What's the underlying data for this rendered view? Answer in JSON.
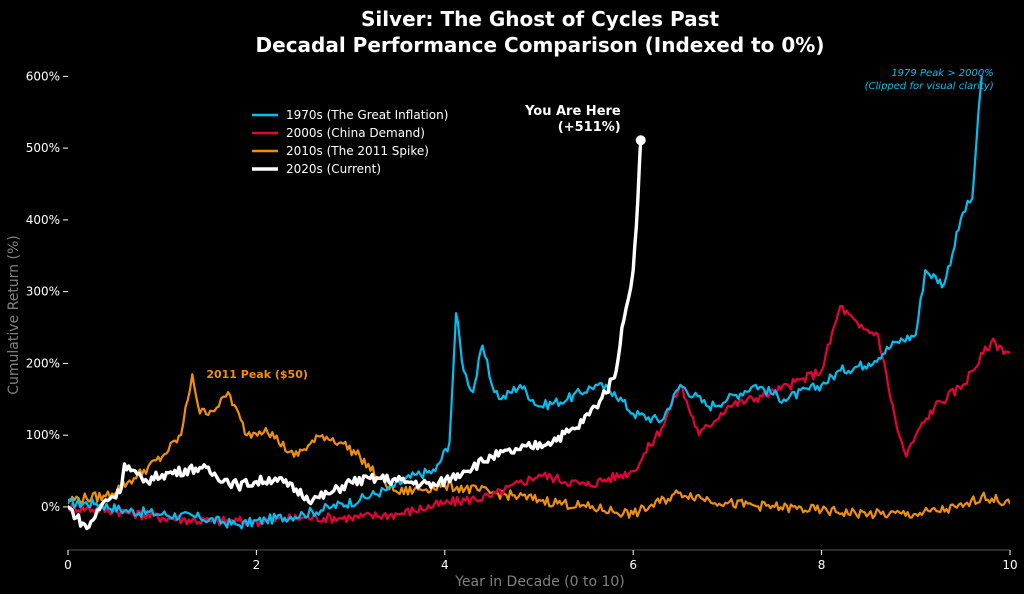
{
  "chart_data": {
    "type": "line",
    "title": "Silver: The Ghost of Cycles Past",
    "subtitle": "Decadal Performance Comparison (Indexed to 0%)",
    "xlabel": "Year in Decade (0 to 10)",
    "ylabel": "Cumulative Return (%)",
    "xlim": [
      0,
      10
    ],
    "ylim": [
      -60,
      620
    ],
    "x_ticks": [
      0,
      2,
      4,
      6,
      8,
      10
    ],
    "y_ticks": [
      0,
      100,
      200,
      300,
      400,
      500,
      600
    ],
    "y_tick_labels": [
      "0%",
      "100%",
      "200%",
      "300%",
      "400%",
      "500%",
      "600%"
    ],
    "grid": false,
    "legend_position": "upper-left",
    "series": [
      {
        "name": "1970s (The Great Inflation)",
        "color": "#00c0f0",
        "x": [
          0,
          0.3,
          0.6,
          1.0,
          1.4,
          1.8,
          2.1,
          2.5,
          2.8,
          3.1,
          3.4,
          3.7,
          3.9,
          4.05,
          4.12,
          4.2,
          4.3,
          4.4,
          4.5,
          4.6,
          4.8,
          5.0,
          5.3,
          5.6,
          5.8,
          6.0,
          6.3,
          6.5,
          6.8,
          7.0,
          7.3,
          7.6,
          8.0,
          8.2,
          8.5,
          8.8,
          9.0,
          9.1,
          9.3,
          9.5,
          9.6,
          9.65,
          9.7
        ],
        "y": [
          5,
          5,
          -5,
          -10,
          -15,
          -25,
          -18,
          -10,
          0,
          10,
          25,
          45,
          50,
          90,
          270,
          190,
          160,
          225,
          170,
          150,
          170,
          140,
          150,
          170,
          160,
          130,
          120,
          170,
          140,
          150,
          170,
          150,
          170,
          190,
          200,
          230,
          240,
          330,
          310,
          410,
          430,
          520,
          600
        ]
      },
      {
        "name": "2000s (China Demand)",
        "color": "#e8003c",
        "x": [
          0,
          0.5,
          1.0,
          1.5,
          2.0,
          2.5,
          3.0,
          3.5,
          4.0,
          4.5,
          5.0,
          5.5,
          6.0,
          6.3,
          6.5,
          6.7,
          7.0,
          7.5,
          8.0,
          8.2,
          8.4,
          8.6,
          8.8,
          8.9,
          9.0,
          9.2,
          9.5,
          9.8,
          10.0
        ],
        "y": [
          0,
          -5,
          -15,
          -20,
          -20,
          -15,
          -15,
          -10,
          5,
          15,
          45,
          30,
          50,
          110,
          170,
          100,
          140,
          160,
          190,
          280,
          250,
          240,
          110,
          70,
          100,
          140,
          170,
          230,
          215
        ]
      },
      {
        "name": "2010s (The 2011 Spike)",
        "color": "#f0900a",
        "x": [
          0,
          0.4,
          0.7,
          1.0,
          1.2,
          1.32,
          1.4,
          1.6,
          1.7,
          1.9,
          2.1,
          2.4,
          2.7,
          2.9,
          3.1,
          3.3,
          3.5,
          4.0,
          4.5,
          5.0,
          5.5,
          6.0,
          6.5,
          7.0,
          7.5,
          8.0,
          8.5,
          9.0,
          9.5,
          9.7,
          10.0
        ],
        "y": [
          10,
          15,
          40,
          70,
          100,
          185,
          130,
          140,
          160,
          100,
          110,
          70,
          100,
          90,
          70,
          40,
          20,
          30,
          20,
          10,
          0,
          -10,
          20,
          5,
          0,
          -5,
          -10,
          -10,
          0,
          15,
          5
        ]
      },
      {
        "name": "2020s (Current)",
        "color": "#ffffff",
        "x": [
          0,
          0.2,
          0.4,
          0.55,
          0.6,
          0.8,
          1.0,
          1.4,
          1.8,
          2.2,
          2.6,
          2.8,
          3.0,
          3.3,
          3.6,
          3.9,
          4.2,
          4.5,
          4.8,
          5.1,
          5.4,
          5.6,
          5.8,
          5.9,
          6.0,
          6.05,
          6.08
        ],
        "y": [
          0,
          -30,
          10,
          20,
          60,
          35,
          45,
          55,
          30,
          40,
          10,
          20,
          35,
          40,
          35,
          30,
          50,
          70,
          80,
          90,
          110,
          140,
          180,
          260,
          330,
          430,
          511
        ]
      }
    ],
    "annotations": [
      {
        "text": "You Are Here\n(+511%)",
        "x": 6.08,
        "y": 511,
        "color": "#ffffff"
      },
      {
        "text": "2011 Peak ($50)",
        "x": 1.32,
        "y": 185,
        "color": "#f0900a"
      },
      {
        "text": "1979 Peak > 2000%\n(Clipped for visual clarity)",
        "x": 9.7,
        "y": 600,
        "color": "#00c0f0"
      }
    ]
  }
}
